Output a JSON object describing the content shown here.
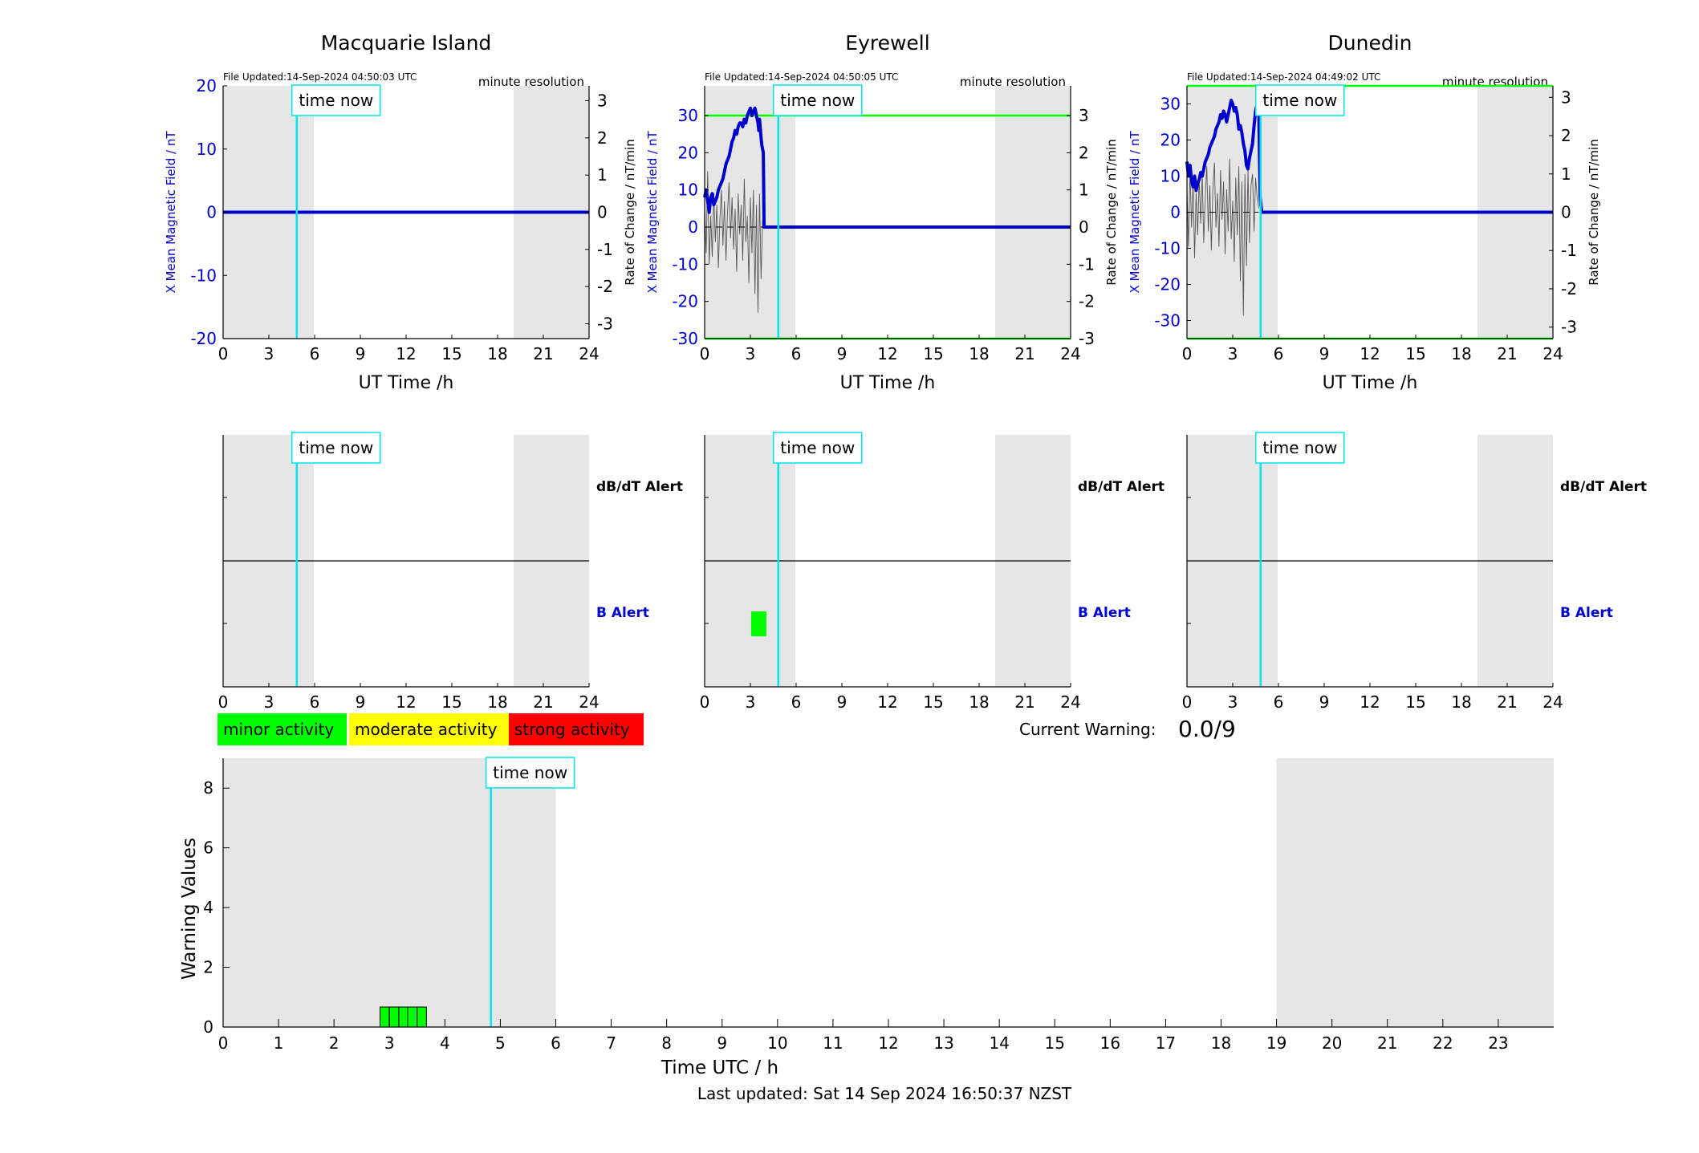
{
  "figure": {
    "last_updated": "Last updated: Sat 14 Sep 2024 16:50:37 NZST",
    "current_warning_label": "Current Warning:",
    "current_warning_value": "0.0/9",
    "time_now_label": "time now",
    "colors": {
      "night_shade": "#e6e6e6",
      "time_now": "#00e5ee",
      "field_line": "#0000cc",
      "threshold": "#00ff00",
      "rate_line": "#555555",
      "minor": "#00ff00",
      "moderate": "#ffff00",
      "strong": "#ff0000"
    }
  },
  "chart_data": [
    {
      "type": "line",
      "title": "Macquarie Island",
      "file_updated": "File Updated:14-Sep-2024 04:50:03 UTC",
      "resolution": "minute resolution",
      "xlabel": "UT Time /h",
      "ylabel_left": "X Mean Magnetic Field / nT",
      "ylabel_right": "Rate of Change / nT/min",
      "xlim": [
        0,
        24
      ],
      "xticks": [
        0,
        3,
        6,
        9,
        12,
        15,
        18,
        21,
        24
      ],
      "ylim_left": [
        -20,
        20
      ],
      "yticks_left": [
        -20,
        -10,
        0,
        10,
        20
      ],
      "ylim_right": [
        -3.4,
        3.4
      ],
      "yticks_right": [
        -3,
        -2,
        -1,
        0,
        1,
        2,
        3
      ],
      "shade": [
        [
          0,
          5.95
        ],
        [
          19.05,
          24
        ]
      ],
      "time_now": 4.83,
      "thresholds": [],
      "series": [
        {
          "x": [
            0,
            24
          ],
          "y": [
            0,
            0
          ]
        }
      ],
      "rate": {
        "x": [],
        "y": []
      }
    },
    {
      "type": "line",
      "title": "Eyrewell",
      "file_updated": "File Updated:14-Sep-2024 04:50:05 UTC",
      "resolution": "minute resolution",
      "xlabel": "UT Time /h",
      "ylabel_left": "X Mean Magnetic Field / nT",
      "ylabel_right": "Rate of Change / nT/min",
      "xlim": [
        0,
        24
      ],
      "xticks": [
        0,
        3,
        6,
        9,
        12,
        15,
        18,
        21,
        24
      ],
      "ylim_left": [
        -30,
        38
      ],
      "yticks_left": [
        -30,
        -20,
        -10,
        0,
        10,
        20,
        30
      ],
      "ylim_right": [
        -3,
        3.8
      ],
      "yticks_right": [
        -3,
        -2,
        -1,
        0,
        1,
        2,
        3
      ],
      "shade": [
        [
          0,
          5.95
        ],
        [
          19.05,
          24
        ]
      ],
      "time_now": 4.83,
      "thresholds": [
        30,
        -30
      ],
      "series": [
        {
          "x": [
            0,
            0.1,
            0.2,
            0.3,
            0.4,
            0.5,
            0.6,
            0.7,
            0.8,
            0.9,
            1.0,
            1.1,
            1.2,
            1.3,
            1.4,
            1.5,
            1.6,
            1.7,
            1.8,
            1.9,
            2.0,
            2.1,
            2.2,
            2.3,
            2.4,
            2.5,
            2.6,
            2.7,
            2.8,
            2.9,
            3.0,
            3.1,
            3.2,
            3.3,
            3.4,
            3.5,
            3.55,
            3.6,
            3.7,
            3.75,
            3.8,
            3.85,
            3.9,
            4.0,
            4.5,
            5,
            24
          ],
          "y": [
            8,
            10,
            7,
            4,
            8,
            9,
            6,
            7,
            8,
            10,
            11,
            12,
            13,
            15,
            17,
            18,
            19,
            21,
            23,
            24,
            26,
            25,
            27,
            28,
            28,
            27,
            29,
            28,
            30,
            31,
            32,
            30,
            31,
            32,
            30,
            28,
            26,
            29,
            24,
            22,
            21,
            20,
            0,
            0,
            0,
            0,
            0
          ]
        }
      ],
      "rate": {
        "x": [
          0,
          0.1,
          0.2,
          0.3,
          0.4,
          0.5,
          0.6,
          0.7,
          0.8,
          0.9,
          1.0,
          1.1,
          1.2,
          1.3,
          1.4,
          1.5,
          1.6,
          1.7,
          1.8,
          1.9,
          2.0,
          2.1,
          2.2,
          2.3,
          2.4,
          2.5,
          2.6,
          2.7,
          2.8,
          2.9,
          3.0,
          3.1,
          3.2,
          3.3,
          3.4,
          3.5,
          3.6,
          3.7,
          3.8
        ],
        "y": [
          0.5,
          -0.7,
          1.5,
          -1.0,
          0.3,
          -0.8,
          0.9,
          -0.4,
          0.6,
          -1.1,
          0.2,
          1.0,
          -0.5,
          0.7,
          -0.9,
          0.4,
          1.2,
          -0.3,
          0.8,
          -0.6,
          0.5,
          -1.2,
          0.9,
          -0.2,
          0.6,
          -0.9,
          1.3,
          -0.4,
          0.3,
          -1.5,
          0.8,
          -0.7,
          1.0,
          -1.8,
          0.6,
          -2.3,
          0.9,
          -1.4,
          0.2
        ]
      }
    },
    {
      "type": "line",
      "title": "Dunedin",
      "file_updated": "File Updated:14-Sep-2024 04:49:02 UTC",
      "resolution": "minute resolution",
      "xlabel": "UT Time /h",
      "ylabel_left": "X Mean Magnetic Field / nT",
      "ylabel_right": "Rate of Change / nT/min",
      "xlim": [
        0,
        24
      ],
      "xticks": [
        0,
        3,
        6,
        9,
        12,
        15,
        18,
        21,
        24
      ],
      "ylim_left": [
        -35,
        35
      ],
      "yticks_left": [
        -30,
        -20,
        -10,
        0,
        10,
        20,
        30
      ],
      "ylim_right": [
        -3.3,
        3.3
      ],
      "yticks_right": [
        -3,
        -2,
        -1,
        0,
        1,
        2,
        3
      ],
      "shade": [
        [
          0,
          5.95
        ],
        [
          19.05,
          24
        ]
      ],
      "time_now": 4.83,
      "thresholds": [
        35,
        -35
      ],
      "series": [
        {
          "x": [
            0,
            0.1,
            0.2,
            0.3,
            0.4,
            0.5,
            0.6,
            0.7,
            0.8,
            0.9,
            1.0,
            1.1,
            1.2,
            1.3,
            1.4,
            1.5,
            1.6,
            1.7,
            1.8,
            1.9,
            2.0,
            2.1,
            2.2,
            2.3,
            2.4,
            2.5,
            2.6,
            2.7,
            2.8,
            2.9,
            3.0,
            3.1,
            3.2,
            3.3,
            3.4,
            3.5,
            3.6,
            3.7,
            3.8,
            3.9,
            4.0,
            4.1,
            4.2,
            4.3,
            4.4,
            4.5,
            4.6,
            4.7,
            4.8,
            4.9,
            5,
            24
          ],
          "y": [
            14,
            10,
            13,
            9,
            7,
            10,
            6,
            8,
            9,
            11,
            10,
            12,
            14,
            15,
            16,
            18,
            19,
            20,
            21,
            23,
            24,
            25,
            27,
            26,
            28,
            27,
            25,
            27,
            29,
            31,
            30,
            28,
            29,
            27,
            23,
            24,
            22,
            19,
            17,
            13,
            12,
            15,
            17,
            19,
            24,
            28,
            30,
            31,
            4,
            0,
            0,
            0
          ]
        }
      ],
      "rate": {
        "x": [
          0,
          0.1,
          0.2,
          0.3,
          0.4,
          0.5,
          0.6,
          0.7,
          0.8,
          0.9,
          1.0,
          1.1,
          1.2,
          1.3,
          1.4,
          1.5,
          1.6,
          1.7,
          1.8,
          1.9,
          2.0,
          2.1,
          2.2,
          2.3,
          2.4,
          2.5,
          2.6,
          2.7,
          2.8,
          2.9,
          3.0,
          3.1,
          3.2,
          3.3,
          3.4,
          3.5,
          3.6,
          3.7,
          3.8,
          3.9,
          4.0,
          4.1,
          4.2,
          4.3,
          4.4,
          4.5,
          4.6,
          4.7
        ],
        "y": [
          0.6,
          -0.9,
          1.1,
          -0.4,
          0.8,
          -1.2,
          0.5,
          -0.6,
          0.9,
          -0.3,
          1.0,
          -0.8,
          0.4,
          1.2,
          -0.5,
          0.7,
          -1.0,
          0.6,
          1.3,
          -0.4,
          0.5,
          -0.9,
          1.1,
          -0.2,
          0.8,
          -1.1,
          0.6,
          -0.5,
          1.4,
          -0.7,
          0.3,
          -1.3,
          0.9,
          -0.6,
          1.2,
          -1.8,
          0.8,
          -2.7,
          1.0,
          -1.4,
          1.1,
          -0.8,
          0.7,
          1.0,
          -0.5,
          0.9,
          0.4,
          0.1
        ]
      }
    }
  ],
  "alerts": [
    {
      "title": "Macquarie Island",
      "dbdt_label": "dB/dT Alert",
      "b_label": "B Alert",
      "blocks": []
    },
    {
      "title": "Eyrewell",
      "dbdt_label": "",
      "b_label": "",
      "blocks": [
        {
          "row": "b",
          "x": 3.05,
          "color": "#00ff00"
        }
      ]
    },
    {
      "title": "Dunedin",
      "dbdt_label": "dB/dT Alert",
      "b_label": "B Alert",
      "blocks": []
    }
  ],
  "alerts_eyrewell_labels": {
    "dbdt_label": "dB/dT Alert",
    "b_label": "B Alert"
  },
  "legend": [
    {
      "label": "minor activity",
      "color": "#00ff00"
    },
    {
      "label": "moderate activity",
      "color": "#ffff00"
    },
    {
      "label": "strong activity",
      "color": "#ff0000"
    }
  ],
  "warning_chart": {
    "type": "bar",
    "xlabel": "Time UTC / h",
    "ylabel": "Warning Values",
    "xlim": [
      0,
      24
    ],
    "xticks": [
      0,
      1,
      2,
      3,
      4,
      5,
      6,
      7,
      8,
      9,
      10,
      11,
      12,
      13,
      14,
      15,
      16,
      17,
      18,
      19,
      20,
      21,
      22,
      23
    ],
    "ylim": [
      0,
      9
    ],
    "yticks": [
      0,
      2,
      4,
      6,
      8
    ],
    "shade": [
      [
        0,
        6
      ],
      [
        19,
        24
      ]
    ],
    "time_now": 4.83,
    "bars": [
      {
        "x": 2.83,
        "width": 0.167,
        "value": 0.67,
        "color": "#00ff00"
      },
      {
        "x": 3.0,
        "width": 0.167,
        "value": 0.67,
        "color": "#00ff00"
      },
      {
        "x": 3.17,
        "width": 0.167,
        "value": 0.67,
        "color": "#00ff00"
      },
      {
        "x": 3.33,
        "width": 0.167,
        "value": 0.67,
        "color": "#00ff00"
      },
      {
        "x": 3.5,
        "width": 0.167,
        "value": 0.67,
        "color": "#00ff00"
      }
    ]
  }
}
